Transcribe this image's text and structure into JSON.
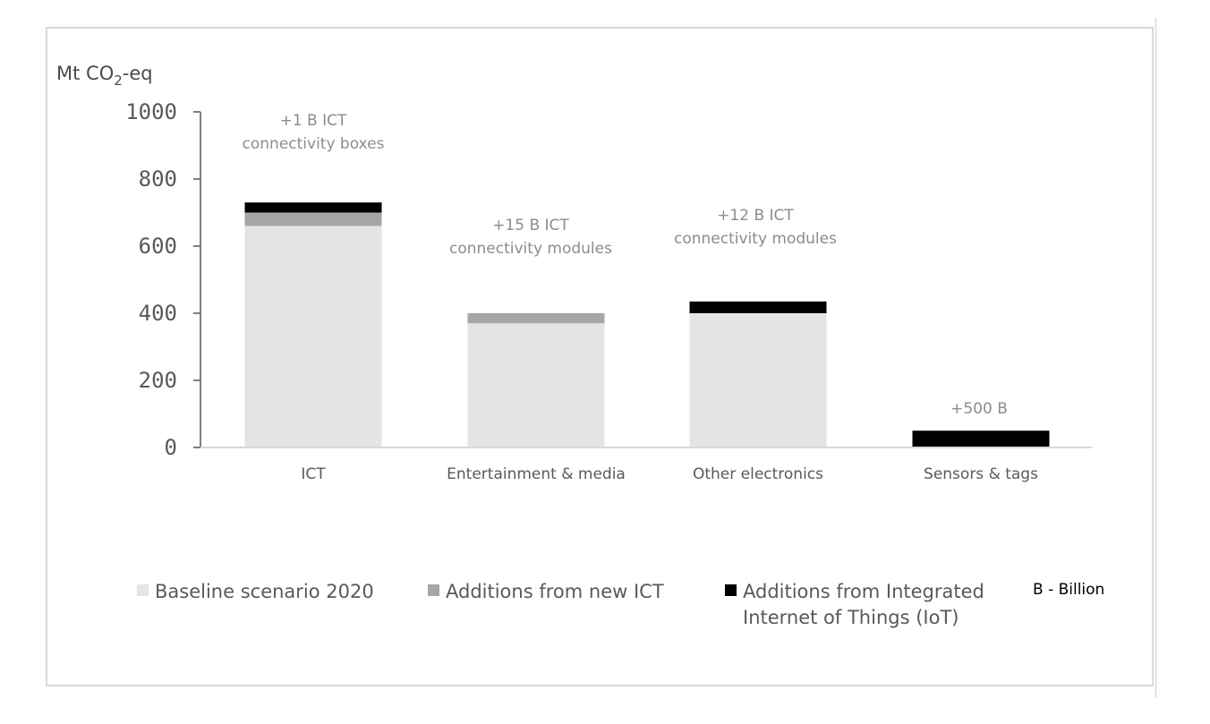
{
  "chart_data": {
    "type": "bar",
    "stacked": true,
    "title": "",
    "ylabel": "Mt CO2-eq",
    "ylabel_main": "Mt CO",
    "ylabel_sub": "2",
    "ylabel_suffix": "-eq",
    "xlabel": "",
    "ylim": [
      0,
      1000
    ],
    "yticks": [
      0,
      200,
      400,
      600,
      800,
      1000
    ],
    "ytick_labels": [
      "0",
      "200",
      "400",
      "600",
      "800",
      "1000"
    ],
    "grid": false,
    "legend_position": "bottom",
    "categories": [
      "ICT",
      "Entertainment & media",
      "Other electronics",
      "Sensors & tags"
    ],
    "series": [
      {
        "name": "Baseline scenario 2020",
        "color": "#e4e4e4",
        "values": [
          660,
          370,
          400,
          0
        ]
      },
      {
        "name": "Additions from new ICT",
        "color": "#a6a6a6",
        "values": [
          40,
          30,
          0,
          0
        ]
      },
      {
        "name": "Additions from Integrated Internet of Things (IoT)",
        "color": "#000000",
        "values": [
          30,
          0,
          35,
          50
        ]
      }
    ],
    "annotations": [
      {
        "category": "ICT",
        "lines": [
          "+1 B ICT",
          "connectivity boxes"
        ]
      },
      {
        "category": "Entertainment & media",
        "lines": [
          "+15 B ICT",
          "connectivity modules"
        ]
      },
      {
        "category": "Other electronics",
        "lines": [
          "+12 B ICT",
          "connectivity modules"
        ]
      },
      {
        "category": "Sensors & tags",
        "lines": [
          "+500 B"
        ]
      }
    ],
    "legend": [
      {
        "lines": [
          "Baseline scenario 2020"
        ],
        "color": "#e4e4e4"
      },
      {
        "lines": [
          "Additions from new ICT"
        ],
        "color": "#a6a6a6"
      },
      {
        "lines": [
          "Additions from Integrated",
          "Internet of Things (IoT)"
        ],
        "color": "#000000"
      }
    ],
    "footnote": "B - Billion"
  }
}
